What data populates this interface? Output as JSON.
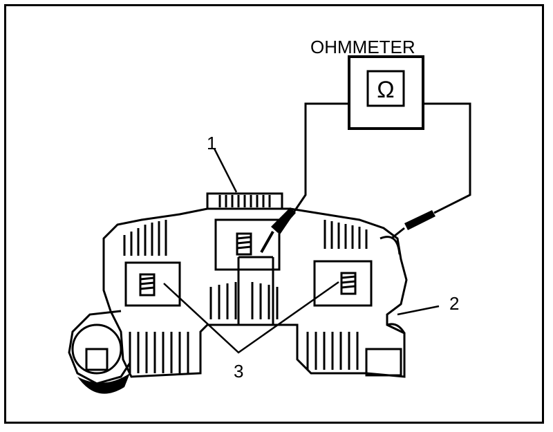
{
  "meter": {
    "title": "OHMMETER",
    "symbol": "Ω"
  },
  "callouts": {
    "c1": "1",
    "c2": "2",
    "c3": "3"
  },
  "colors": {
    "ink": "#000000",
    "paper": "#ffffff"
  }
}
